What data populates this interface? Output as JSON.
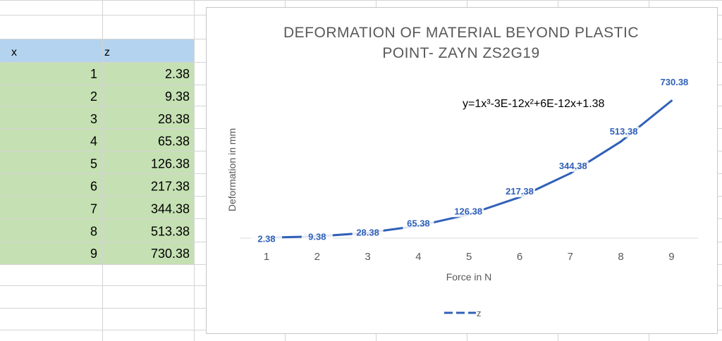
{
  "table": {
    "header": {
      "x": "x",
      "z": "z"
    },
    "rows": [
      {
        "x": "1",
        "z": "2.38"
      },
      {
        "x": "2",
        "z": "9.38"
      },
      {
        "x": "3",
        "z": "28.38"
      },
      {
        "x": "4",
        "z": "65.38"
      },
      {
        "x": "5",
        "z": "126.38"
      },
      {
        "x": "6",
        "z": "217.38"
      },
      {
        "x": "7",
        "z": "344.38"
      },
      {
        "x": "8",
        "z": "513.38"
      },
      {
        "x": "9",
        "z": "730.38"
      }
    ],
    "colors": {
      "header_bg": "#b4d3ee",
      "body_bg": "#c5e0b3",
      "grid": "#d4d4d4"
    }
  },
  "chart_data": {
    "type": "line",
    "title_line1": "DEFORMATION OF MATERIAL BEYOND PLASTIC",
    "title_line2": "POINT- ZAYN ZS2G19",
    "xlabel": "Force in N",
    "ylabel": "Deformation in mm",
    "equation": "y=1x³-3E-12x²+6E-12x+1.38",
    "categories": [
      "1",
      "2",
      "3",
      "4",
      "5",
      "6",
      "7",
      "8",
      "9"
    ],
    "series": [
      {
        "name": "z",
        "values": [
          2.38,
          9.38,
          28.38,
          65.38,
          126.38,
          217.38,
          344.38,
          513.38,
          730.38
        ],
        "labels": [
          "2.38",
          "9.38",
          "28.38",
          "65.38",
          "126.38",
          "217.38",
          "344.38",
          "513.38",
          "730.38"
        ],
        "color": "#3060b8",
        "dashed": true
      }
    ],
    "legend_position": "bottom",
    "grid": false
  }
}
